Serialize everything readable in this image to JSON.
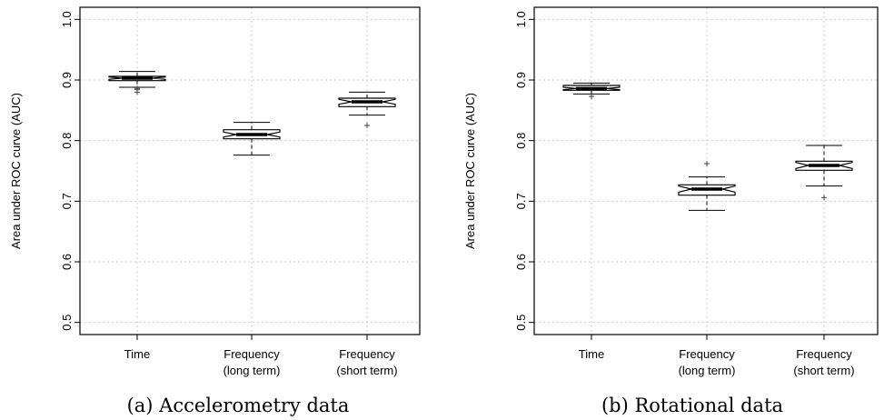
{
  "chart_data": [
    {
      "type": "boxplot",
      "caption_label": "(a)",
      "caption_text": "Accelerometry data",
      "ylabel": "Area under ROC curve (AUC)",
      "ylim": [
        0.48,
        1.02
      ],
      "yticks": [
        "0.5",
        "0.6",
        "0.7",
        "0.8",
        "0.9",
        "1.0"
      ],
      "grid": true,
      "categories": [
        {
          "line1": "Time",
          "line2": ""
        },
        {
          "line1": "Frequency",
          "line2": "(long term)"
        },
        {
          "line1": "Frequency",
          "line2": "(short term)"
        }
      ],
      "boxes": [
        {
          "min": 0.888,
          "q1": 0.899,
          "median": 0.903,
          "q3": 0.906,
          "max": 0.914,
          "notch_lo": 0.901,
          "notch_hi": 0.905,
          "outliers": [
            0.88,
            0.884,
            0.886
          ]
        },
        {
          "min": 0.776,
          "q1": 0.803,
          "median": 0.81,
          "q3": 0.818,
          "max": 0.83,
          "notch_lo": 0.806,
          "notch_hi": 0.814,
          "outliers": []
        },
        {
          "min": 0.842,
          "q1": 0.856,
          "median": 0.864,
          "q3": 0.87,
          "max": 0.88,
          "notch_lo": 0.86,
          "notch_hi": 0.868,
          "outliers": [
            0.825
          ]
        }
      ]
    },
    {
      "type": "boxplot",
      "caption_label": "(b)",
      "caption_text": "Rotational data",
      "ylabel": "Area under ROC curve (AUC)",
      "ylim": [
        0.48,
        1.02
      ],
      "yticks": [
        "0.5",
        "0.6",
        "0.7",
        "0.8",
        "0.9",
        "1.0"
      ],
      "grid": true,
      "categories": [
        {
          "line1": "Time",
          "line2": ""
        },
        {
          "line1": "Frequency",
          "line2": "(long term)"
        },
        {
          "line1": "Frequency",
          "line2": "(short term)"
        }
      ],
      "boxes": [
        {
          "min": 0.877,
          "q1": 0.883,
          "median": 0.886,
          "q3": 0.891,
          "max": 0.895,
          "notch_lo": 0.884,
          "notch_hi": 0.888,
          "outliers": [
            0.873
          ]
        },
        {
          "min": 0.685,
          "q1": 0.71,
          "median": 0.72,
          "q3": 0.727,
          "max": 0.74,
          "notch_lo": 0.715,
          "notch_hi": 0.725,
          "outliers": [
            0.762
          ]
        },
        {
          "min": 0.725,
          "q1": 0.751,
          "median": 0.759,
          "q3": 0.766,
          "max": 0.792,
          "notch_lo": 0.754,
          "notch_hi": 0.764,
          "outliers": [
            0.706
          ]
        }
      ]
    }
  ]
}
